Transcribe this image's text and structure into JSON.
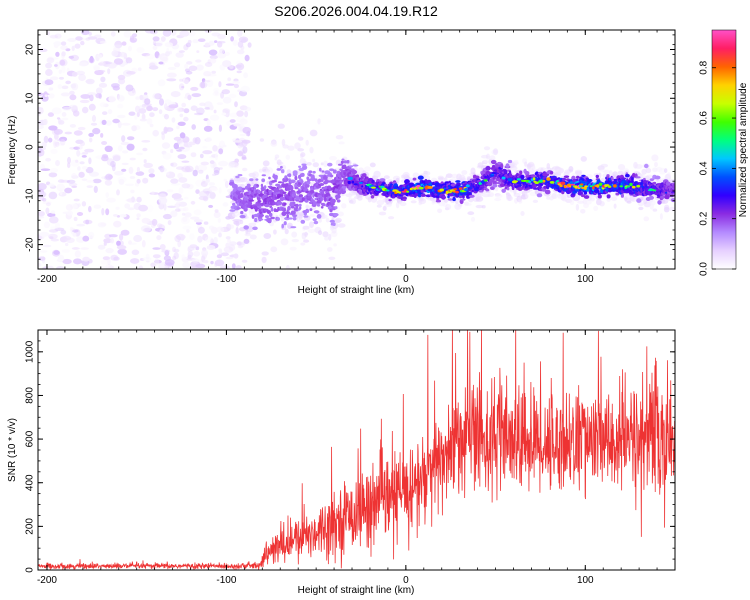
{
  "figure": {
    "title": "S206.2026.004.04.19.R12"
  },
  "chart_data": [
    {
      "type": "heatmap",
      "name": "spectrogram",
      "title": "S206.2026.004.04.19.R12",
      "xlabel": "Height of straight line (km)",
      "ylabel": "Frequency (Hz)",
      "xlim": [
        -205,
        150
      ],
      "ylim": [
        -25,
        24
      ],
      "xticks": [
        -200,
        -100,
        0,
        100
      ],
      "xtick_labels": [
        "-200",
        "-100",
        "0",
        "100"
      ],
      "yticks": [
        -20,
        -10,
        0,
        10,
        20
      ],
      "ytick_labels": [
        "-20",
        "-10",
        "0",
        "10",
        "20"
      ],
      "colorbar": {
        "label": "Normalized spectral amplitude",
        "range": [
          0.0,
          0.95
        ],
        "ticks": [
          0.0,
          0.2,
          0.4,
          0.6,
          0.8
        ],
        "tick_labels": [
          "0.0",
          "0.2",
          "0.4",
          "0.6",
          "0.8"
        ],
        "colormap": [
          "#ffffff",
          "#e6d0ff",
          "#b48aff",
          "#8a2be2",
          "#3000ff",
          "#0050ff",
          "#00c8ff",
          "#00ff80",
          "#40ff00",
          "#c8ff00",
          "#ffd200",
          "#ff6400",
          "#ff1e64",
          "#ff50c8"
        ]
      },
      "noise_region": {
        "x_range": [
          -205,
          -87
        ],
        "y_range": [
          -25,
          24
        ],
        "amplitude_range": [
          0.0,
          0.1
        ]
      },
      "signal_track": {
        "x": [
          -97,
          -90,
          -80,
          -70,
          -60,
          -50,
          -40,
          -35,
          -30,
          -20,
          -10,
          0,
          10,
          20,
          30,
          40,
          50,
          60,
          70,
          80,
          90,
          100,
          110,
          120,
          130,
          140,
          150
        ],
        "freq": [
          -10,
          -11,
          -11,
          -10,
          -10,
          -9,
          -10,
          -6,
          -7,
          -8,
          -9,
          -9,
          -8,
          -9,
          -9,
          -8,
          -5,
          -7,
          -7,
          -7,
          -8,
          -8,
          -8,
          -8,
          -8,
          -9,
          -9
        ],
        "amplitude": [
          0.15,
          0.2,
          0.25,
          0.25,
          0.2,
          0.2,
          0.25,
          0.25,
          0.3,
          0.5,
          0.6,
          0.7,
          0.8,
          0.7,
          0.75,
          0.5,
          0.4,
          0.5,
          0.6,
          0.6,
          0.75,
          0.8,
          0.85,
          0.7,
          0.6,
          0.45,
          0.35
        ],
        "spread_hz": [
          3,
          3,
          4,
          4,
          4,
          4,
          4,
          3,
          2,
          1.5,
          1.2,
          1.2,
          1.2,
          1.2,
          1.3,
          1.5,
          2,
          1.5,
          1.4,
          1.3,
          1.3,
          1.3,
          1.3,
          1.4,
          1.5,
          1.5,
          1.5
        ]
      }
    },
    {
      "type": "line",
      "name": "snr",
      "xlabel": "Height of straight line (km)",
      "ylabel": "SNR (10 * v/v)",
      "xlim": [
        -205,
        150
      ],
      "ylim": [
        0,
        1100
      ],
      "xticks": [
        -200,
        -100,
        0,
        100
      ],
      "xtick_labels": [
        "-200",
        "-100",
        "0",
        "100"
      ],
      "yticks": [
        0,
        200,
        400,
        600,
        800,
        1000
      ],
      "ytick_labels": [
        "0",
        "200",
        "400",
        "600",
        "800",
        "1000"
      ],
      "color": "#ee3333",
      "envelope": {
        "x": [
          -205,
          -100,
          -82,
          -78,
          -70,
          -60,
          -50,
          -40,
          -30,
          -20,
          -10,
          0,
          10,
          20,
          25,
          30,
          40,
          50,
          60,
          70,
          80,
          90,
          100,
          110,
          120,
          130,
          140,
          150
        ],
        "mean": [
          18,
          18,
          20,
          70,
          110,
          140,
          180,
          220,
          260,
          290,
          320,
          360,
          410,
          500,
          570,
          610,
          620,
          600,
          580,
          590,
          580,
          590,
          600,
          580,
          590,
          600,
          620,
          560
        ],
        "amplitude": [
          12,
          12,
          15,
          50,
          80,
          90,
          110,
          130,
          150,
          170,
          190,
          200,
          210,
          230,
          240,
          230,
          250,
          260,
          220,
          220,
          210,
          220,
          210,
          210,
          230,
          260,
          280,
          220
        ]
      }
    }
  ]
}
